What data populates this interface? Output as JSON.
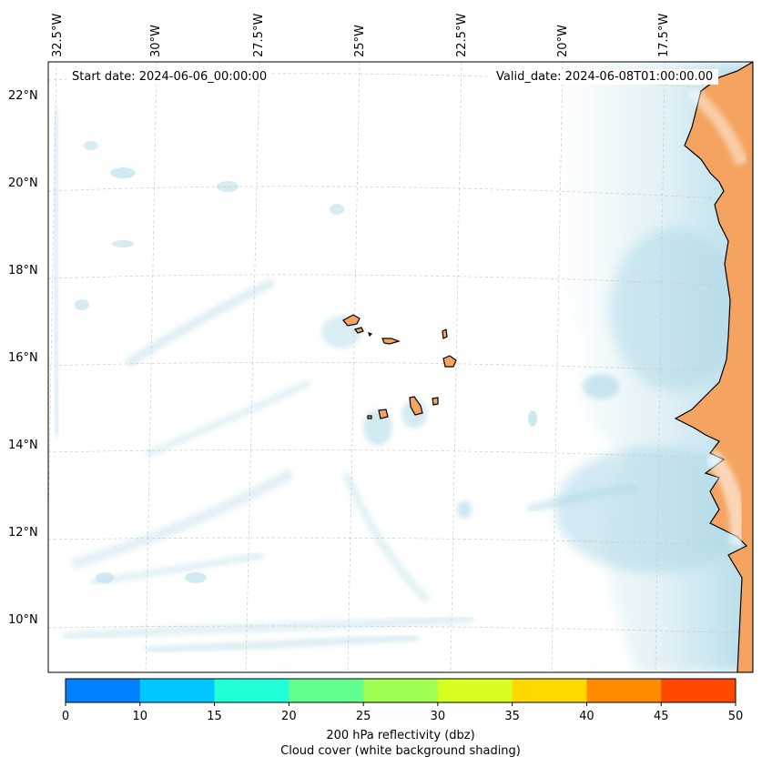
{
  "map": {
    "start_date": "Start date: 2024-06-06_00:00:00",
    "valid_date": "Valid_date: 2024-06-08T01:00:00.00",
    "lon_labels": [
      "32.5°W",
      "30°W",
      "27.5°W",
      "25°W",
      "22.5°W",
      "20°W",
      "17.5°W"
    ],
    "lat_labels": [
      "22°N",
      "20°N",
      "18°N",
      "16°N",
      "14°N",
      "12°N",
      "10°N"
    ],
    "land_color": "#f4a460",
    "cloud_color": "#add8e6",
    "coastline_color": "#000000",
    "gridlines": true
  },
  "colorbar": {
    "ticks": [
      "0",
      "10",
      "15",
      "20",
      "25",
      "30",
      "35",
      "40",
      "45",
      "50"
    ],
    "colors": [
      "#0080ff",
      "#00c8ff",
      "#20ffd8",
      "#60ff90",
      "#a0ff50",
      "#d8ff20",
      "#ffd800",
      "#ff8c00",
      "#ff4800"
    ],
    "label_line1": "200 hPa reflectivity (dbz)",
    "label_line2": "Cloud cover (white background shading)"
  }
}
